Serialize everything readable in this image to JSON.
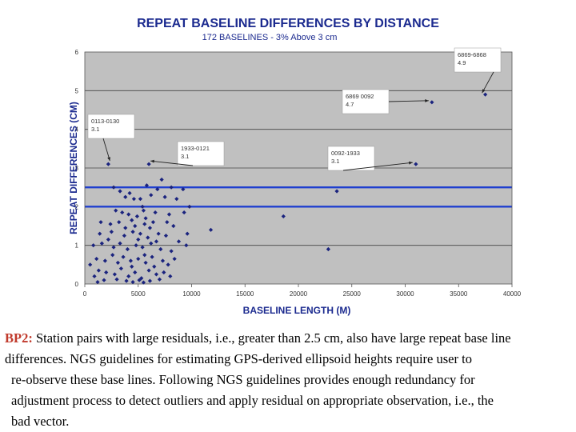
{
  "chart_data": {
    "type": "scatter",
    "title": "REPEAT BASELINE DIFFERENCES BY  DISTANCE",
    "subtitle": "172 BASELINES - 3% Above 3 cm",
    "xlabel": "BASELINE LENGTH (M)",
    "ylabel": "REPEAT DIFFERENCES (CM)",
    "xlim": [
      0,
      40000
    ],
    "ylim": [
      0,
      6
    ],
    "xticks": [
      0,
      5000,
      10000,
      15000,
      20000,
      25000,
      30000,
      35000,
      40000
    ],
    "yticks": [
      0,
      1,
      2,
      3,
      4,
      5,
      6
    ],
    "grid": "horizontal",
    "reference_lines": [
      2.0,
      2.5
    ],
    "colors": {
      "points": "#1a237e",
      "ref_lines": "#1f3fcf",
      "plot_bg": "#c0c0c0"
    },
    "annotations": [
      {
        "lines": [
          "0113-0130",
          "3.1"
        ],
        "target": [
          2200,
          3.1
        ]
      },
      {
        "lines": [
          "1933-0121",
          "3.1"
        ],
        "target": [
          6000,
          3.1
        ]
      },
      {
        "lines": [
          "0092-1933",
          "3.1"
        ],
        "target": [
          31000,
          3.1
        ]
      },
      {
        "lines": [
          "6869 0092",
          "4.7"
        ],
        "target": [
          32500,
          4.7
        ]
      },
      {
        "lines": [
          "6869-6868",
          "4.9"
        ],
        "target": [
          37500,
          4.9
        ]
      }
    ],
    "series": [
      {
        "points": [
          [
            2200,
            3.1
          ],
          [
            6000,
            3.1
          ],
          [
            31000,
            3.1
          ],
          [
            32500,
            4.7
          ],
          [
            37500,
            4.9
          ],
          [
            7200,
            2.7
          ],
          [
            2700,
            2.5
          ],
          [
            3300,
            2.4
          ],
          [
            4200,
            2.35
          ],
          [
            5800,
            2.55
          ],
          [
            6800,
            2.45
          ],
          [
            8100,
            2.5
          ],
          [
            9200,
            2.45
          ],
          [
            23600,
            2.4
          ],
          [
            18600,
            1.75
          ],
          [
            11800,
            1.4
          ],
          [
            22800,
            0.9
          ],
          [
            3800,
            2.25
          ],
          [
            4600,
            2.2
          ],
          [
            5200,
            2.2
          ],
          [
            6200,
            2.3
          ],
          [
            7500,
            2.25
          ],
          [
            8600,
            2.2
          ],
          [
            9800,
            2.0
          ],
          [
            2900,
            1.9
          ],
          [
            3500,
            1.85
          ],
          [
            4100,
            1.8
          ],
          [
            5500,
            1.9
          ],
          [
            6600,
            1.85
          ],
          [
            7900,
            1.8
          ],
          [
            9300,
            1.85
          ],
          [
            1500,
            1.6
          ],
          [
            2400,
            1.55
          ],
          [
            3200,
            1.6
          ],
          [
            4700,
            1.5
          ],
          [
            5600,
            1.55
          ],
          [
            6400,
            1.6
          ],
          [
            8300,
            1.5
          ],
          [
            9600,
            1.3
          ],
          [
            1400,
            1.3
          ],
          [
            2500,
            1.35
          ],
          [
            3700,
            1.25
          ],
          [
            4500,
            1.35
          ],
          [
            5200,
            1.3
          ],
          [
            5900,
            1.2
          ],
          [
            6900,
            1.3
          ],
          [
            7600,
            1.25
          ],
          [
            8800,
            1.1
          ],
          [
            9500,
            1.0
          ],
          [
            800,
            1.0
          ],
          [
            1600,
            1.05
          ],
          [
            2700,
            0.95
          ],
          [
            3300,
            1.05
          ],
          [
            4000,
            0.9
          ],
          [
            4800,
            1.0
          ],
          [
            5400,
            0.95
          ],
          [
            6200,
            1.05
          ],
          [
            7100,
            0.9
          ],
          [
            8100,
            0.85
          ],
          [
            500,
            0.5
          ],
          [
            1100,
            0.65
          ],
          [
            1900,
            0.6
          ],
          [
            2600,
            0.75
          ],
          [
            3600,
            0.7
          ],
          [
            4300,
            0.6
          ],
          [
            5000,
            0.65
          ],
          [
            5700,
            0.55
          ],
          [
            6300,
            0.7
          ],
          [
            7300,
            0.6
          ],
          [
            8400,
            0.65
          ],
          [
            900,
            0.2
          ],
          [
            1300,
            0.35
          ],
          [
            2000,
            0.3
          ],
          [
            2800,
            0.25
          ],
          [
            3400,
            0.4
          ],
          [
            4100,
            0.2
          ],
          [
            4700,
            0.3
          ],
          [
            5300,
            0.15
          ],
          [
            6000,
            0.35
          ],
          [
            6700,
            0.25
          ],
          [
            7400,
            0.3
          ],
          [
            8000,
            0.2
          ],
          [
            1200,
            0.05
          ],
          [
            1800,
            0.1
          ],
          [
            3000,
            0.12
          ],
          [
            3900,
            0.08
          ],
          [
            4500,
            0.05
          ],
          [
            5100,
            0.1
          ],
          [
            5500,
            0.04
          ],
          [
            6100,
            0.08
          ],
          [
            7000,
            0.12
          ],
          [
            4900,
            1.75
          ],
          [
            5700,
            1.7
          ],
          [
            6100,
            1.45
          ],
          [
            5000,
            1.15
          ],
          [
            5600,
            0.75
          ],
          [
            4400,
            0.45
          ],
          [
            6500,
            0.45
          ],
          [
            7800,
            0.5
          ],
          [
            3100,
            0.55
          ],
          [
            5400,
            2.0
          ],
          [
            4400,
            1.65
          ],
          [
            6700,
            1.1
          ],
          [
            7700,
            1.6
          ],
          [
            2200,
            1.15
          ],
          [
            3800,
            1.45
          ]
        ]
      }
    ]
  },
  "caption": {
    "label": "BP2:",
    "lines": [
      "Station pairs with large residuals, i.e., greater than 2.5 cm, also have large repeat base line",
      "differences.  NGS guidelines for estimating GPS-derived ellipsoid heights require user to",
      "re-observe these base lines.  Following NGS guidelines provides enough redundancy for",
      "adjustment process to detect outliers and apply residual on appropriate observation, i.e., the",
      "bad vector."
    ]
  }
}
